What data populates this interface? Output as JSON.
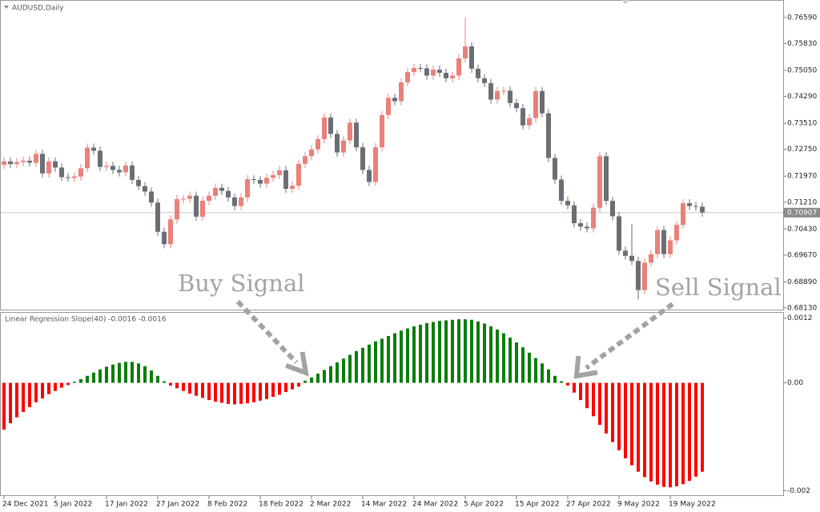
{
  "chart_data": [
    {
      "type": "candlestick",
      "title": "AUDUSD,Daily",
      "ylim": [
        0.6806,
        0.7703
      ],
      "yticks": [
        {
          "value": 0.7659,
          "label": "0.76590"
        },
        {
          "value": 0.7583,
          "label": "0.75830"
        },
        {
          "value": 0.7505,
          "label": "0.75050"
        },
        {
          "value": 0.7429,
          "label": "0.74290"
        },
        {
          "value": 0.7351,
          "label": "0.73510"
        },
        {
          "value": 0.7275,
          "label": "0.72750"
        },
        {
          "value": 0.7197,
          "label": "0.71970"
        },
        {
          "value": 0.7121,
          "label": "0.71210"
        },
        {
          "value": 0.7043,
          "label": "0.70430"
        },
        {
          "value": 0.6967,
          "label": "0.69670"
        },
        {
          "value": 0.6889,
          "label": "0.68890"
        },
        {
          "value": 0.6813,
          "label": "0.68130"
        }
      ],
      "current_price": 0.70907,
      "up_color": "#e9817a",
      "down_color": "#6b6e75",
      "annotations": [
        "Buy Signal",
        "Sell Signal"
      ],
      "open": [
        0.723,
        0.724,
        0.7232,
        0.7238,
        0.7242,
        0.7236,
        0.7262,
        0.7205,
        0.724,
        0.7222,
        0.7194,
        0.7192,
        0.7196,
        0.722,
        0.728,
        0.7271,
        0.7224,
        0.7227,
        0.7215,
        0.7208,
        0.7228,
        0.7186,
        0.7168,
        0.7152,
        0.712,
        0.7035,
        0.6999,
        0.7071,
        0.713,
        0.7131,
        0.714,
        0.7079,
        0.7125,
        0.714,
        0.7163,
        0.7154,
        0.7135,
        0.711,
        0.7135,
        0.7188,
        0.7186,
        0.7175,
        0.7192,
        0.72,
        0.7214,
        0.716,
        0.7169,
        0.7233,
        0.7255,
        0.7275,
        0.7305,
        0.7368,
        0.732,
        0.7266,
        0.7301,
        0.7353,
        0.7281,
        0.7215,
        0.718,
        0.7281,
        0.7375,
        0.7425,
        0.7415,
        0.747,
        0.75,
        0.7512,
        0.7511,
        0.749,
        0.7507,
        0.7498,
        0.7482,
        0.749,
        0.754,
        0.7575,
        0.751,
        0.7482,
        0.7468,
        0.742,
        0.7445,
        0.7446,
        0.741,
        0.7395,
        0.7345,
        0.7366,
        0.7445,
        0.738,
        0.725,
        0.7187,
        0.7125,
        0.7112,
        0.706,
        0.705,
        0.7045,
        0.7105,
        0.7255,
        0.7125,
        0.708,
        0.698,
        0.6965,
        0.695,
        0.6865,
        0.6945,
        0.697,
        0.704,
        0.697,
        0.701,
        0.7055,
        0.7118,
        0.711,
        0.7108
      ],
      "high": [
        0.7252,
        0.7252,
        0.725,
        0.7254,
        0.7254,
        0.7274,
        0.7274,
        0.7252,
        0.7252,
        0.7234,
        0.7206,
        0.7208,
        0.7232,
        0.7292,
        0.7292,
        0.7283,
        0.7239,
        0.7239,
        0.7227,
        0.724,
        0.724,
        0.7198,
        0.718,
        0.7164,
        0.7132,
        0.7047,
        0.7083,
        0.7142,
        0.7143,
        0.7152,
        0.7152,
        0.7137,
        0.7152,
        0.7175,
        0.7175,
        0.7166,
        0.7147,
        0.7147,
        0.72,
        0.72,
        0.7198,
        0.7204,
        0.7212,
        0.7226,
        0.7226,
        0.7181,
        0.7245,
        0.7267,
        0.7287,
        0.7317,
        0.738,
        0.738,
        0.7332,
        0.7313,
        0.7365,
        0.7365,
        0.7293,
        0.7227,
        0.7293,
        0.7387,
        0.7437,
        0.7437,
        0.7482,
        0.7512,
        0.7524,
        0.7524,
        0.7523,
        0.7519,
        0.7519,
        0.751,
        0.7502,
        0.7552,
        0.766,
        0.7587,
        0.7522,
        0.7494,
        0.748,
        0.7457,
        0.7458,
        0.7458,
        0.7422,
        0.7407,
        0.7378,
        0.7457,
        0.7457,
        0.7392,
        0.7262,
        0.7199,
        0.7137,
        0.7124,
        0.7072,
        0.7062,
        0.7117,
        0.7267,
        0.7267,
        0.7137,
        0.7092,
        0.6992,
        0.7058,
        0.6962,
        0.6957,
        0.6982,
        0.7052,
        0.7052,
        0.7022,
        0.7067,
        0.713,
        0.713,
        0.7122,
        0.712
      ],
      "low": [
        0.7218,
        0.722,
        0.722,
        0.7226,
        0.7224,
        0.7224,
        0.7193,
        0.7193,
        0.721,
        0.7182,
        0.718,
        0.718,
        0.7184,
        0.7208,
        0.7259,
        0.7212,
        0.7212,
        0.7203,
        0.7196,
        0.7196,
        0.7174,
        0.7156,
        0.714,
        0.7108,
        0.7023,
        0.6987,
        0.6987,
        0.7059,
        0.7118,
        0.7119,
        0.7067,
        0.7067,
        0.7113,
        0.7128,
        0.7142,
        0.7123,
        0.7098,
        0.7098,
        0.7123,
        0.7174,
        0.7163,
        0.7163,
        0.718,
        0.7188,
        0.7148,
        0.7148,
        0.7157,
        0.7221,
        0.7243,
        0.7263,
        0.7293,
        0.7308,
        0.7254,
        0.7254,
        0.7289,
        0.7269,
        0.7203,
        0.7168,
        0.7168,
        0.7269,
        0.7363,
        0.7403,
        0.7403,
        0.7458,
        0.7488,
        0.7499,
        0.7478,
        0.7478,
        0.7486,
        0.747,
        0.747,
        0.7478,
        0.7528,
        0.7498,
        0.747,
        0.7456,
        0.7408,
        0.7408,
        0.7433,
        0.7398,
        0.7383,
        0.7333,
        0.7333,
        0.7354,
        0.7368,
        0.7238,
        0.7175,
        0.7113,
        0.71,
        0.7048,
        0.7038,
        0.7033,
        0.7033,
        0.7093,
        0.7113,
        0.7068,
        0.6968,
        0.6953,
        0.6938,
        0.6838,
        0.6853,
        0.6933,
        0.6958,
        0.6958,
        0.6958,
        0.6998,
        0.7043,
        0.7098,
        0.7096,
        0.7079
      ],
      "close": [
        0.724,
        0.7232,
        0.7238,
        0.7242,
        0.7236,
        0.7262,
        0.7205,
        0.724,
        0.7222,
        0.7194,
        0.7192,
        0.7196,
        0.722,
        0.728,
        0.7271,
        0.7224,
        0.7227,
        0.7215,
        0.7208,
        0.7228,
        0.7186,
        0.7168,
        0.7152,
        0.712,
        0.7035,
        0.6999,
        0.7071,
        0.713,
        0.7131,
        0.714,
        0.7079,
        0.7125,
        0.714,
        0.7163,
        0.7154,
        0.7135,
        0.711,
        0.7135,
        0.7188,
        0.7186,
        0.7175,
        0.7192,
        0.72,
        0.7214,
        0.716,
        0.7169,
        0.7233,
        0.7255,
        0.7275,
        0.7305,
        0.7368,
        0.732,
        0.7266,
        0.7301,
        0.7353,
        0.7281,
        0.7215,
        0.718,
        0.7281,
        0.7375,
        0.7425,
        0.7415,
        0.747,
        0.75,
        0.7512,
        0.7511,
        0.749,
        0.7507,
        0.7498,
        0.7482,
        0.749,
        0.754,
        0.7575,
        0.751,
        0.7482,
        0.7468,
        0.742,
        0.7445,
        0.7446,
        0.741,
        0.7395,
        0.7345,
        0.7366,
        0.7445,
        0.738,
        0.725,
        0.7187,
        0.7125,
        0.7112,
        0.706,
        0.705,
        0.7045,
        0.7105,
        0.7255,
        0.7125,
        0.708,
        0.698,
        0.6965,
        0.695,
        0.6865,
        0.6945,
        0.697,
        0.704,
        0.697,
        0.701,
        0.7055,
        0.7118,
        0.711,
        0.7108,
        0.7091
      ]
    },
    {
      "type": "histogram-bar",
      "title": "Linear Regression Slope(40) -0.0016 -0.0016",
      "ylim": [
        -0.0021,
        0.0013
      ],
      "yticks": [
        0.0012,
        {
          "value": 0,
          "label": "0.00"
        },
        -0.002
      ],
      "positive_color": "#0b7d0b",
      "negative_color": "#ff0000",
      "categories": [
        "24 Dec 2021",
        null,
        null,
        null,
        null,
        null,
        null,
        null,
        "5 Jan 2022",
        null,
        null,
        null,
        null,
        null,
        null,
        null,
        "17 Jan 2022",
        null,
        null,
        null,
        null,
        null,
        null,
        null,
        "27 Jan 2022",
        null,
        null,
        null,
        null,
        null,
        null,
        null,
        "8 Feb 2022",
        null,
        null,
        null,
        null,
        null,
        null,
        null,
        "18 Feb 2022",
        null,
        null,
        null,
        null,
        null,
        null,
        null,
        "2 Mar 2022",
        null,
        null,
        null,
        null,
        null,
        null,
        null,
        "14 Mar 2022",
        null,
        null,
        null,
        null,
        null,
        null,
        null,
        "24 Mar 2022",
        null,
        null,
        null,
        null,
        null,
        null,
        null,
        "5 Apr 2022",
        null,
        null,
        null,
        null,
        null,
        null,
        null,
        "15 Apr 2022",
        null,
        null,
        null,
        null,
        null,
        null,
        null,
        "27 Apr 2022",
        null,
        null,
        null,
        null,
        null,
        null,
        null,
        "9 May 2022",
        null,
        null,
        null,
        null,
        null,
        null,
        null,
        "19 May 2022",
        null,
        null,
        null,
        null,
        null
      ],
      "values": [
        -0.00087,
        -0.00075,
        -0.00064,
        -0.00054,
        -0.00045,
        -0.00036,
        -0.00029,
        -0.00021,
        -0.00015,
        -9e-05,
        -4e-05,
        2e-05,
        7e-05,
        0.00013,
        0.00019,
        0.00025,
        0.0003,
        0.00034,
        0.00037,
        0.00039,
        0.00039,
        0.00036,
        0.00031,
        0.00023,
        0.00013,
        3e-05,
        -5e-05,
        -0.0001,
        -0.00015,
        -0.0002,
        -0.00024,
        -0.00028,
        -0.00032,
        -0.00035,
        -0.00037,
        -0.00039,
        -0.0004,
        -0.00039,
        -0.00038,
        -0.00036,
        -0.00033,
        -0.0003,
        -0.00026,
        -0.00022,
        -0.00017,
        -0.00012,
        -7e-05,
        4e-05,
        0.0001,
        0.00017,
        0.00024,
        0.00031,
        0.00038,
        0.00045,
        0.00052,
        0.00059,
        0.00065,
        0.00071,
        0.00077,
        0.00082,
        0.00087,
        0.00092,
        0.00097,
        0.00101,
        0.00105,
        0.00108,
        0.00111,
        0.00113,
        0.00115,
        0.00116,
        0.00117,
        0.00118,
        0.00118,
        0.00117,
        0.00114,
        0.0011,
        0.00105,
        0.00099,
        0.00092,
        0.00084,
        0.00075,
        0.00066,
        0.00056,
        0.00046,
        0.00036,
        0.00025,
        0.00013,
        3e-05,
        -5e-05,
        -0.00018,
        -0.00032,
        -0.00047,
        -0.00062,
        -0.00078,
        -0.00094,
        -0.0011,
        -0.00125,
        -0.0014,
        -0.00153,
        -0.00165,
        -0.00175,
        -0.00183,
        -0.00189,
        -0.00193,
        -0.00194,
        -0.00192,
        -0.00188,
        -0.00182,
        -0.00174,
        -0.00165
      ]
    }
  ]
}
